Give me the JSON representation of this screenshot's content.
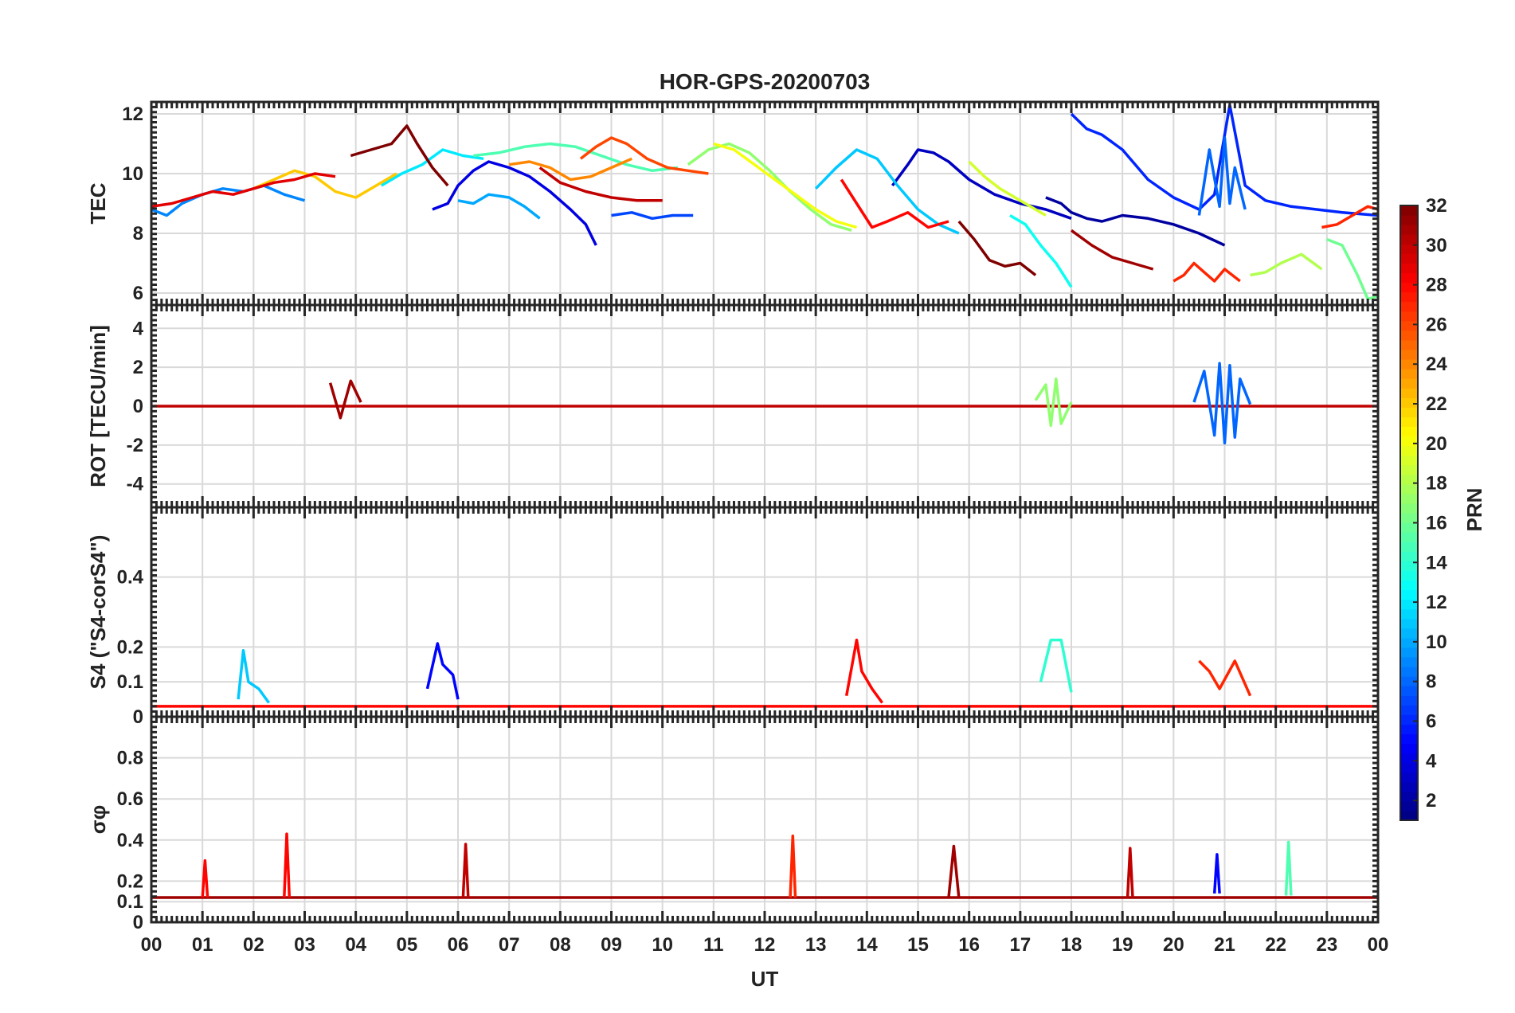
{
  "title": "HOR-GPS-20200703",
  "colormap": [
    "#00007f",
    "#0000ff",
    "#007fff",
    "#00ffff",
    "#7fff7f",
    "#ffff00",
    "#ff7f00",
    "#ff0000",
    "#7f0000"
  ],
  "chart_data": {
    "type": "line",
    "title": "HOR-GPS-20200703",
    "xlabel": "UT",
    "xlim": [
      0,
      24
    ],
    "x_ticks": [
      0,
      1,
      2,
      3,
      4,
      5,
      6,
      7,
      8,
      9,
      10,
      11,
      12,
      13,
      14,
      15,
      16,
      17,
      18,
      19,
      20,
      21,
      22,
      23,
      24
    ],
    "x_tick_labels": [
      "00",
      "01",
      "02",
      "03",
      "04",
      "05",
      "06",
      "07",
      "08",
      "09",
      "10",
      "11",
      "12",
      "13",
      "14",
      "15",
      "16",
      "17",
      "18",
      "19",
      "20",
      "21",
      "22",
      "23",
      "00"
    ],
    "grid": true,
    "colorbar": {
      "label": "PRN",
      "range": [
        1,
        32
      ],
      "ticks": [
        2,
        4,
        6,
        8,
        10,
        12,
        14,
        16,
        18,
        20,
        22,
        24,
        26,
        28,
        30,
        32
      ],
      "tick_labels": [
        "2",
        "4",
        "6",
        "8",
        "10",
        "12",
        "14",
        "16",
        "18",
        "20",
        "22",
        "24",
        "26",
        "28",
        "30",
        "32"
      ],
      "placement": "right"
    },
    "panels": [
      {
        "id": "tec",
        "ylabel": "TEC",
        "ylim": [
          5.6,
          12.4
        ],
        "y_ticks": [
          6,
          8,
          10,
          12
        ],
        "y_tick_labels": [
          "6",
          "8",
          "10",
          "12"
        ],
        "series": [
          {
            "prn": 2,
            "x": [
              17.5,
              17.8,
              18.0,
              18.3,
              18.6,
              19.0,
              19.5,
              20.0,
              20.5,
              21.0
            ],
            "y": [
              9.2,
              9.0,
              8.7,
              8.5,
              8.4,
              8.6,
              8.5,
              8.3,
              8.0,
              7.6
            ]
          },
          {
            "prn": 3,
            "x": [
              14.5,
              14.8,
              15.0,
              15.3,
              15.6,
              16.0,
              16.5,
              17.0,
              17.5,
              18.0
            ],
            "y": [
              9.6,
              10.3,
              10.8,
              10.7,
              10.4,
              9.8,
              9.3,
              9.0,
              8.8,
              8.5
            ]
          },
          {
            "prn": 4,
            "x": [
              5.5,
              5.8,
              6.0,
              6.3,
              6.6,
              7.0,
              7.4,
              7.8,
              8.2,
              8.5,
              8.7
            ],
            "y": [
              8.8,
              9.0,
              9.6,
              10.1,
              10.4,
              10.2,
              9.9,
              9.4,
              8.8,
              8.3,
              7.6
            ]
          },
          {
            "prn": 6,
            "x": [
              18.0,
              18.3,
              18.6,
              19.0,
              19.5,
              20.0,
              20.5,
              20.8,
              21.1,
              21.4,
              21.8,
              22.3,
              22.8,
              23.3,
              24.0
            ],
            "y": [
              12.0,
              11.5,
              11.3,
              10.8,
              9.8,
              9.2,
              8.8,
              9.3,
              12.3,
              9.6,
              9.1,
              8.9,
              8.8,
              8.7,
              8.6
            ]
          },
          {
            "prn": 7,
            "x": [
              9.0,
              9.4,
              9.8,
              10.2,
              10.6
            ],
            "y": [
              8.6,
              8.7,
              8.5,
              8.6,
              8.6
            ]
          },
          {
            "prn": 8,
            "x": [
              20.5,
              20.7,
              20.9,
              21.0,
              21.1,
              21.2,
              21.4
            ],
            "y": [
              8.6,
              10.8,
              8.9,
              11.2,
              9.0,
              10.2,
              8.8
            ]
          },
          {
            "prn": 9,
            "x": [
              0.0,
              0.3,
              0.6,
              1.0,
              1.4,
              1.8,
              2.2,
              2.6,
              3.0
            ],
            "y": [
              8.8,
              8.6,
              9.0,
              9.3,
              9.5,
              9.4,
              9.6,
              9.3,
              9.1
            ]
          },
          {
            "prn": 10,
            "x": [
              6.0,
              6.3,
              6.6,
              7.0,
              7.3,
              7.6
            ],
            "y": [
              9.1,
              9.0,
              9.3,
              9.2,
              8.9,
              8.5
            ]
          },
          {
            "prn": 11,
            "x": [
              13.0,
              13.4,
              13.8,
              14.2,
              14.6,
              15.0,
              15.4,
              15.8
            ],
            "y": [
              9.5,
              10.2,
              10.8,
              10.5,
              9.6,
              8.8,
              8.3,
              8.0
            ]
          },
          {
            "prn": 12,
            "x": [
              4.5,
              4.9,
              5.3,
              5.7,
              6.1,
              6.5
            ],
            "y": [
              9.6,
              10.0,
              10.3,
              10.8,
              10.6,
              10.5
            ]
          },
          {
            "prn": 13,
            "x": [
              16.8,
              17.1,
              17.4,
              17.7,
              18.0
            ],
            "y": [
              8.6,
              8.3,
              7.6,
              7.0,
              6.2
            ]
          },
          {
            "prn": 15,
            "x": [
              6.3,
              6.8,
              7.3,
              7.8,
              8.3,
              8.8,
              9.3,
              9.8,
              10.3
            ],
            "y": [
              10.6,
              10.7,
              10.9,
              11.0,
              10.9,
              10.6,
              10.3,
              10.1,
              10.2
            ]
          },
          {
            "prn": 17,
            "x": [
              10.5,
              10.9,
              11.3,
              11.7,
              12.1,
              12.5,
              12.9,
              13.3,
              13.7
            ],
            "y": [
              10.3,
              10.8,
              11.0,
              10.7,
              10.1,
              9.4,
              8.8,
              8.3,
              8.1
            ]
          },
          {
            "prn": 18,
            "x": [
              21.5,
              21.8,
              22.1,
              22.5,
              22.9
            ],
            "y": [
              6.6,
              6.7,
              7.0,
              7.3,
              6.8
            ]
          },
          {
            "prn": 19,
            "x": [
              16.0,
              16.3,
              16.6,
              16.9,
              17.2,
              17.5
            ],
            "y": [
              10.4,
              9.9,
              9.5,
              9.2,
              8.9,
              8.6
            ]
          },
          {
            "prn": 20,
            "x": [
              11.0,
              11.4,
              11.8,
              12.2,
              12.6,
              13.0,
              13.4,
              13.8
            ],
            "y": [
              11.0,
              10.8,
              10.3,
              9.8,
              9.3,
              8.8,
              8.4,
              8.2
            ]
          },
          {
            "prn": 22,
            "x": [
              2.0,
              2.4,
              2.8,
              3.2,
              3.6,
              4.0,
              4.4,
              4.8
            ],
            "y": [
              9.5,
              9.8,
              10.1,
              9.9,
              9.4,
              9.2,
              9.6,
              10.0
            ]
          },
          {
            "prn": 24,
            "x": [
              7.0,
              7.4,
              7.8,
              8.2,
              8.6,
              9.0,
              9.4
            ],
            "y": [
              10.3,
              10.4,
              10.2,
              9.8,
              9.9,
              10.2,
              10.5
            ]
          },
          {
            "prn": 26,
            "x": [
              8.4,
              8.7,
              9.0,
              9.3,
              9.7,
              10.1,
              10.5,
              10.9
            ],
            "y": [
              10.5,
              10.9,
              11.2,
              11.0,
              10.5,
              10.2,
              10.1,
              10.0
            ]
          },
          {
            "prn": 27,
            "x": [
              20.0,
              20.2,
              20.4,
              20.6,
              20.8,
              21.0,
              21.3
            ],
            "y": [
              6.4,
              6.6,
              7.0,
              6.7,
              6.4,
              6.8,
              6.4
            ]
          },
          {
            "prn": 28,
            "x": [
              13.5,
              13.8,
              14.1,
              14.4,
              14.8,
              15.2,
              15.6
            ],
            "y": [
              9.8,
              9.0,
              8.2,
              8.4,
              8.7,
              8.2,
              8.4
            ]
          },
          {
            "prn": 29,
            "x": [
              0.0,
              0.4,
              0.8,
              1.2,
              1.6,
              2.0,
              2.4,
              2.8,
              3.2,
              3.6
            ],
            "y": [
              8.9,
              9.0,
              9.2,
              9.4,
              9.3,
              9.5,
              9.7,
              9.8,
              10.0,
              9.9
            ]
          },
          {
            "prn": 30,
            "x": [
              7.6,
              8.0,
              8.5,
              9.0,
              9.5,
              10.0
            ],
            "y": [
              10.2,
              9.7,
              9.4,
              9.2,
              9.1,
              9.1
            ]
          },
          {
            "prn": 31,
            "x": [
              18.0,
              18.4,
              18.8,
              19.2,
              19.6
            ],
            "y": [
              8.1,
              7.6,
              7.2,
              7.0,
              6.8
            ]
          },
          {
            "prn": 32,
            "x": [
              3.9,
              4.3,
              4.7,
              5.0,
              5.2,
              5.5,
              5.8
            ],
            "y": [
              10.6,
              10.8,
              11.0,
              11.6,
              11.0,
              10.2,
              9.6
            ]
          },
          {
            "prn": 32,
            "x": [
              15.8,
              16.1,
              16.4,
              16.7,
              17.0,
              17.3
            ],
            "y": [
              8.4,
              7.8,
              7.1,
              6.9,
              7.0,
              6.6
            ]
          },
          {
            "prn": 27,
            "x": [
              22.9,
              23.2,
              23.5,
              23.8,
              24.0
            ],
            "y": [
              8.2,
              8.3,
              8.6,
              8.9,
              8.8
            ]
          },
          {
            "prn": 16,
            "x": [
              23.0,
              23.3,
              23.6,
              23.8,
              24.0
            ],
            "y": [
              7.8,
              7.6,
              6.6,
              5.8,
              5.9
            ]
          }
        ]
      },
      {
        "id": "rot",
        "ylabel": "ROT [TECU/min]",
        "ylim": [
          -5.2,
          5.2
        ],
        "y_ticks": [
          -4,
          -2,
          0,
          2,
          4
        ],
        "y_tick_labels": [
          "-4",
          "-2",
          "0",
          "2",
          "4"
        ],
        "series": [
          {
            "prn": 30,
            "x": [
              0,
              3,
              6,
              9,
              12,
              15,
              18,
              21,
              24
            ],
            "y": [
              0.0,
              0.0,
              0.0,
              0.0,
              0.0,
              0.0,
              0.0,
              0.0,
              0.0
            ]
          },
          {
            "prn": 8,
            "x": [
              20.4,
              20.6,
              20.8,
              20.9,
              21.0,
              21.1,
              21.2,
              21.3,
              21.5
            ],
            "y": [
              0.2,
              1.8,
              -1.5,
              2.2,
              -1.9,
              2.1,
              -1.6,
              1.4,
              0.1
            ]
          },
          {
            "prn": 17,
            "x": [
              17.3,
              17.5,
              17.6,
              17.7,
              17.8,
              18.0
            ],
            "y": [
              0.3,
              1.1,
              -1.0,
              1.4,
              -0.9,
              0.2
            ]
          },
          {
            "prn": 31,
            "x": [
              3.5,
              3.7,
              3.9,
              4.1
            ],
            "y": [
              1.2,
              -0.6,
              1.3,
              0.2
            ]
          }
        ]
      },
      {
        "id": "s4",
        "ylabel": "S4 (\"S4-corS4\")",
        "ylim": [
          0,
          0.6
        ],
        "y_ticks": [
          0,
          0.1,
          0.2,
          0.4
        ],
        "y_tick_labels": [
          "0",
          "0.1",
          "0.2",
          "0.4"
        ],
        "series": [
          {
            "prn": 28,
            "x": [
              0,
              4,
              8,
              12,
              16,
              20,
              24
            ],
            "y": [
              0.03,
              0.03,
              0.03,
              0.03,
              0.03,
              0.03,
              0.03
            ]
          },
          {
            "prn": 5,
            "x": [
              5.4,
              5.6,
              5.7,
              5.9,
              6.0
            ],
            "y": [
              0.08,
              0.21,
              0.15,
              0.12,
              0.05
            ]
          },
          {
            "prn": 14,
            "x": [
              17.4,
              17.6,
              17.8,
              18.0
            ],
            "y": [
              0.1,
              0.22,
              0.22,
              0.07
            ]
          },
          {
            "prn": 28,
            "x": [
              13.6,
              13.8,
              13.9,
              14.1,
              14.3
            ],
            "y": [
              0.06,
              0.22,
              0.13,
              0.08,
              0.04
            ]
          },
          {
            "prn": 11,
            "x": [
              1.7,
              1.8,
              1.9,
              2.1,
              2.3
            ],
            "y": [
              0.05,
              0.19,
              0.1,
              0.08,
              0.04
            ]
          },
          {
            "prn": 27,
            "x": [
              20.5,
              20.7,
              20.9,
              21.2,
              21.5
            ],
            "y": [
              0.16,
              0.13,
              0.08,
              0.16,
              0.06
            ]
          }
        ]
      },
      {
        "id": "sigma_phi",
        "ylabel": "σφ",
        "ylim": [
          0,
          1
        ],
        "y_ticks": [
          0,
          0.1,
          0.2,
          0.4,
          0.6,
          0.8
        ],
        "y_tick_labels": [
          "0",
          "0.1",
          "0.2",
          "0.4",
          "0.6",
          "0.8"
        ],
        "series": [
          {
            "prn": 31,
            "x": [
              0,
              4,
              8,
              12,
              16,
              20,
              24
            ],
            "y": [
              0.12,
              0.12,
              0.12,
              0.12,
              0.12,
              0.12,
              0.12
            ]
          },
          {
            "prn": 28,
            "x": [
              2.6,
              2.65,
              2.7
            ],
            "y": [
              0.12,
              0.43,
              0.12
            ]
          },
          {
            "prn": 30,
            "x": [
              6.1,
              6.15,
              6.2
            ],
            "y": [
              0.12,
              0.38,
              0.12
            ]
          },
          {
            "prn": 27,
            "x": [
              12.5,
              12.55,
              12.6
            ],
            "y": [
              0.12,
              0.42,
              0.12
            ]
          },
          {
            "prn": 15,
            "x": [
              22.2,
              22.25,
              22.3
            ],
            "y": [
              0.13,
              0.39,
              0.13
            ]
          },
          {
            "prn": 31,
            "x": [
              15.6,
              15.7,
              15.8
            ],
            "y": [
              0.12,
              0.37,
              0.12
            ]
          },
          {
            "prn": 30,
            "x": [
              19.1,
              19.15,
              19.2
            ],
            "y": [
              0.12,
              0.36,
              0.12
            ]
          },
          {
            "prn": 5,
            "x": [
              20.8,
              20.85,
              20.9
            ],
            "y": [
              0.14,
              0.33,
              0.14
            ]
          },
          {
            "prn": 28,
            "x": [
              1.0,
              1.05,
              1.1
            ],
            "y": [
              0.12,
              0.3,
              0.12
            ]
          }
        ]
      }
    ]
  }
}
